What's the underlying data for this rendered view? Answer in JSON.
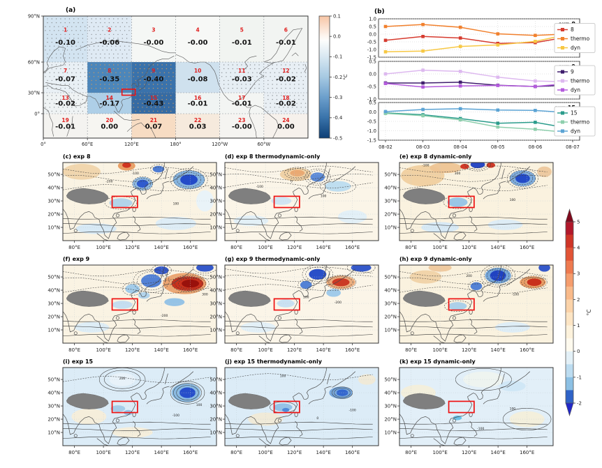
{
  "labels": {
    "panel_a": "(a)",
    "panel_b": "(b)"
  },
  "chart_data": [
    {
      "type": "heatmap",
      "panel": "(a)",
      "xtick_labels": [
        "0°",
        "60°E",
        "120°E",
        "180°",
        "120°W",
        "60°W"
      ],
      "ytick_labels": [
        "90°N",
        "60°N",
        "30°N",
        "0°"
      ],
      "colorbar": {
        "unit": "°C",
        "ticks": [
          "0.1",
          "0.0",
          "-0.1",
          "-0.2",
          "-0.3",
          "-0.4",
          "-0.5"
        ]
      },
      "cells": [
        {
          "num": "1",
          "value": "-0.10",
          "fill": "#d3e4f1",
          "stipple": "gray"
        },
        {
          "num": "2",
          "value": "-0.06",
          "fill": "#dfeaf4",
          "stipple": "gray"
        },
        {
          "num": "3",
          "value": "-0.00",
          "fill": "#f5f7f5",
          "stipple": "none"
        },
        {
          "num": "4",
          "value": "-0.00",
          "fill": "#f7f8f6",
          "stipple": "none"
        },
        {
          "num": "5",
          "value": "-0.01",
          "fill": "#f1f4f1",
          "stipple": "none"
        },
        {
          "num": "6",
          "value": "-0.01",
          "fill": "#f2f4f2",
          "stipple": "none"
        },
        {
          "num": "7",
          "value": "-0.07",
          "fill": "#e9f0f5",
          "stipple": "gray"
        },
        {
          "num": "8",
          "value": "-0.35",
          "fill": "#4c86ba",
          "stipple": "tan"
        },
        {
          "num": "9",
          "value": "-0.40",
          "fill": "#3a72ab",
          "stipple": "tan"
        },
        {
          "num": "10",
          "value": "-0.08",
          "fill": "#cfe1ee",
          "stipple": "none"
        },
        {
          "num": "11",
          "value": "-0.03",
          "fill": "#e6eef4",
          "stipple": "gray"
        },
        {
          "num": "12",
          "value": "-0.02",
          "fill": "#e8eff5",
          "stipple": "gray"
        },
        {
          "num": "13",
          "value": "-0.02",
          "fill": "#eff3f4",
          "stipple": "gray"
        },
        {
          "num": "14",
          "value": "-0.17",
          "fill": "#aecfe7",
          "stipple": "none"
        },
        {
          "num": "15",
          "value": "-0.43",
          "fill": "#366ba3",
          "stipple": "tan"
        },
        {
          "num": "16",
          "value": "-0.01",
          "fill": "#f0f4f3",
          "stipple": "none"
        },
        {
          "num": "17",
          "value": "-0.01",
          "fill": "#f3f5f3",
          "stipple": "none"
        },
        {
          "num": "18",
          "value": "-0.02",
          "fill": "#e9eff4",
          "stipple": "gray"
        },
        {
          "num": "19",
          "value": "-0.01",
          "fill": "#f4f3f0",
          "stipple": "none"
        },
        {
          "num": "20",
          "value": "0.00",
          "fill": "#f6f5f1",
          "stipple": "none"
        },
        {
          "num": "21",
          "value": "0.07",
          "fill": "#f7dcc3",
          "stipple": "none"
        },
        {
          "num": "22",
          "value": "0.03",
          "fill": "#f6eadd",
          "stipple": "none"
        },
        {
          "num": "23",
          "value": "-0.00",
          "fill": "#f5f4f1",
          "stipple": "none"
        },
        {
          "num": "24",
          "value": "0.00",
          "fill": "#f6f1ec",
          "stipple": "none"
        }
      ]
    },
    {
      "type": "line",
      "panel_tag": "exp 8",
      "x": [
        "08-02",
        "08-03",
        "08-04",
        "08-05",
        "08-06",
        "08-07"
      ],
      "ylim": [
        -1.5,
        1.0
      ],
      "yticks": [
        "1.0",
        "0.5",
        "0.0",
        "-0.5",
        "-1.0",
        "-1.5"
      ],
      "series": [
        {
          "name": "8",
          "color": "#d63b2f",
          "values": [
            -0.4,
            -0.15,
            -0.25,
            -0.6,
            -0.55,
            -0.12
          ]
        },
        {
          "name": "thermo",
          "color": "#f1802d",
          "values": [
            0.5,
            0.63,
            0.45,
            0.02,
            -0.08,
            0.03
          ]
        },
        {
          "name": "dyn",
          "color": "#f7c844",
          "values": [
            -1.15,
            -1.1,
            -0.8,
            -0.7,
            -0.47,
            0.05
          ]
        }
      ]
    },
    {
      "type": "line",
      "panel_tag": "exp 9",
      "x": [
        "08-02",
        "08-03",
        "08-04",
        "08-05",
        "08-06",
        "08-07"
      ],
      "ylim": [
        -1.0,
        0.5
      ],
      "yticks": [
        "0.5",
        "0.0",
        "-0.5",
        "-1.0"
      ],
      "series": [
        {
          "name": "9",
          "color": "#3f1d6d",
          "values": [
            -0.36,
            -0.36,
            -0.33,
            -0.45,
            -0.5,
            -0.44
          ]
        },
        {
          "name": "thermo",
          "color": "#ddb8ef",
          "values": [
            0.0,
            0.15,
            0.1,
            -0.13,
            -0.28,
            -0.32
          ]
        },
        {
          "name": "dyn",
          "color": "#b45bdd",
          "values": [
            -0.38,
            -0.52,
            -0.48,
            -0.46,
            -0.5,
            -0.36
          ]
        }
      ]
    },
    {
      "type": "line",
      "panel_tag": "exp 15",
      "x": [
        "08-02",
        "08-03",
        "08-04",
        "08-05",
        "08-06",
        "08-07"
      ],
      "ylim": [
        -1.5,
        0.5
      ],
      "yticks": [
        "0.5",
        "0.0",
        "-0.5",
        "-1.0",
        "-1.5"
      ],
      "series": [
        {
          "name": "15",
          "color": "#2b9c8c",
          "values": [
            -0.05,
            -0.15,
            -0.35,
            -0.6,
            -0.55,
            -0.9
          ]
        },
        {
          "name": "thermo",
          "color": "#8ecfad",
          "values": [
            -0.08,
            -0.2,
            -0.42,
            -0.8,
            -0.92,
            -1.12
          ]
        },
        {
          "name": "dyn",
          "color": "#5ba3d4",
          "values": [
            0.02,
            0.13,
            0.17,
            0.1,
            0.08,
            -0.05
          ]
        }
      ]
    },
    {
      "type": "map-grid",
      "xtick_labels": [
        "80°E",
        "100°E",
        "120°E",
        "140°E",
        "160°E"
      ],
      "ytick_labels": [
        "50°N",
        "40°N",
        "30°N",
        "20°N",
        "10°N"
      ],
      "colorbar": {
        "unit": "°C",
        "ticks": [
          "5",
          "4",
          "3",
          "2",
          "1",
          "0",
          "-1",
          "-2"
        ]
      },
      "panels": [
        {
          "id": "c",
          "title": "(c) exp 8",
          "contour_labels": [
            "100",
            "-100",
            "-200"
          ]
        },
        {
          "id": "d",
          "title": "(d) exp 8 thermodynamic-only",
          "contour_labels": [
            "0",
            "100",
            "-100"
          ]
        },
        {
          "id": "e",
          "title": "(e) exp 8 dynamic-only",
          "contour_labels": [
            "-100",
            "300",
            "100"
          ]
        },
        {
          "id": "f",
          "title": "(f) exp 9",
          "contour_labels": [
            "100",
            "-200",
            "300"
          ]
        },
        {
          "id": "g",
          "title": "(g) exp 9 thermodynamic-only",
          "contour_labels": [
            "-200",
            "100"
          ]
        },
        {
          "id": "h",
          "title": "(h) exp 9 dynamic-only",
          "contour_labels": [
            "-100",
            "200"
          ]
        },
        {
          "id": "i",
          "title": "(i) exp 15",
          "contour_labels": [
            "200",
            "-100",
            "100"
          ]
        },
        {
          "id": "j",
          "title": "(j) exp 15 thermodynamic-only",
          "contour_labels": [
            "100",
            "-100",
            "0"
          ]
        },
        {
          "id": "k",
          "title": "(k) exp 15 dynamic-only",
          "contour_labels": [
            "100",
            "-100"
          ]
        }
      ]
    }
  ]
}
